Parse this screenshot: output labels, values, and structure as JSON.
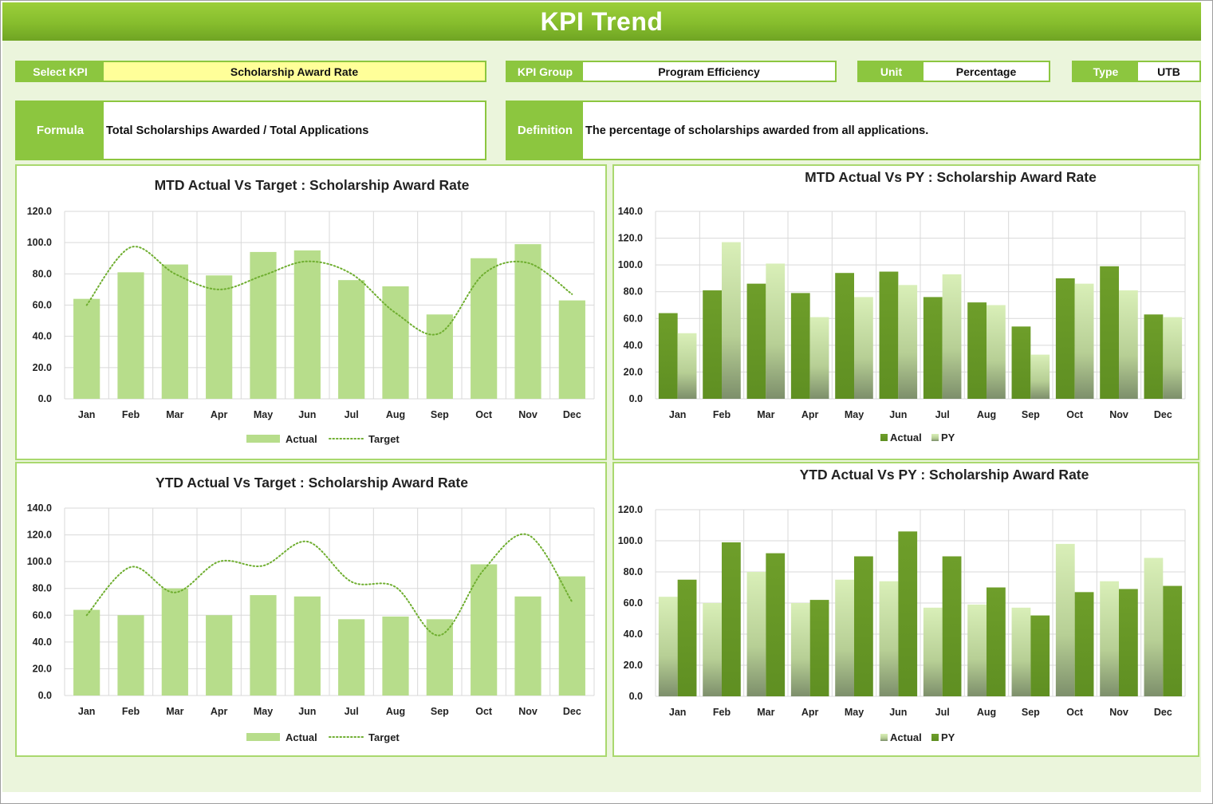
{
  "header": {
    "title": "KPI Trend"
  },
  "fields": {
    "select_kpi": {
      "label": "Select KPI",
      "value": "Scholarship Award Rate"
    },
    "kpi_group": {
      "label": "KPI Group",
      "value": "Program Efficiency"
    },
    "unit": {
      "label": "Unit",
      "value": "Percentage"
    },
    "type": {
      "label": "Type",
      "value": "UTB"
    },
    "formula": {
      "label": "Formula",
      "value": "Total Scholarships Awarded / Total Applications"
    },
    "definition": {
      "label": "Definition",
      "value": "The percentage of scholarships awarded from all applications."
    }
  },
  "colors": {
    "header_green": "#86bd2d",
    "label_green": "#8cc63f",
    "background": "#ebf5dc",
    "select_highlight": "#ffff99",
    "actual_light": "#b7dd8b",
    "dark_green": "#6e9e2a",
    "light_green": "#d6edb5",
    "target_line": "#6fae30"
  },
  "chart_data": [
    {
      "id": "mtd_target",
      "type": "bar",
      "title": "MTD Actual Vs Target : Scholarship Award Rate",
      "categories": [
        "Jan",
        "Feb",
        "Mar",
        "Apr",
        "May",
        "Jun",
        "Jul",
        "Aug",
        "Sep",
        "Oct",
        "Nov",
        "Dec"
      ],
      "ylim": [
        0,
        120
      ],
      "yticks": [
        "0.0",
        "20.0",
        "40.0",
        "60.0",
        "80.0",
        "100.0",
        "120.0"
      ],
      "grid": true,
      "legend_position": "bottom",
      "series": [
        {
          "name": "Actual",
          "kind": "bar",
          "values": [
            64,
            81,
            86,
            79,
            94,
            95,
            76,
            72,
            54,
            90,
            99,
            63
          ]
        },
        {
          "name": "Target",
          "kind": "line-dotted",
          "values": [
            60,
            97,
            80,
            70,
            79,
            88,
            80,
            55,
            42,
            80,
            87,
            67
          ]
        }
      ]
    },
    {
      "id": "mtd_py",
      "type": "bar",
      "title": "MTD Actual Vs PY : Scholarship Award Rate",
      "categories": [
        "Jan",
        "Feb",
        "Mar",
        "Apr",
        "May",
        "Jun",
        "Jul",
        "Aug",
        "Sep",
        "Oct",
        "Nov",
        "Dec"
      ],
      "ylim": [
        0,
        140
      ],
      "yticks": [
        "0.0",
        "20.0",
        "40.0",
        "60.0",
        "80.0",
        "100.0",
        "120.0",
        "140.0"
      ],
      "grid": true,
      "legend_position": "bottom",
      "series": [
        {
          "name": "Actual",
          "kind": "bar",
          "values": [
            64,
            81,
            86,
            79,
            94,
            95,
            76,
            72,
            54,
            90,
            99,
            63
          ]
        },
        {
          "name": "PY",
          "kind": "bar",
          "values": [
            49,
            117,
            101,
            61,
            76,
            85,
            93,
            70,
            33,
            86,
            81,
            61
          ]
        }
      ]
    },
    {
      "id": "ytd_target",
      "type": "bar",
      "title": "YTD Actual Vs Target : Scholarship Award Rate",
      "categories": [
        "Jan",
        "Feb",
        "Mar",
        "Apr",
        "May",
        "Jun",
        "Jul",
        "Aug",
        "Sep",
        "Oct",
        "Nov",
        "Dec"
      ],
      "ylim": [
        0,
        140
      ],
      "yticks": [
        "0.0",
        "20.0",
        "40.0",
        "60.0",
        "80.0",
        "100.0",
        "120.0",
        "140.0"
      ],
      "grid": true,
      "legend_position": "bottom",
      "series": [
        {
          "name": "Actual",
          "kind": "bar",
          "values": [
            64,
            60,
            80,
            60,
            75,
            74,
            57,
            59,
            57,
            98,
            74,
            89
          ]
        },
        {
          "name": "Target",
          "kind": "line-dotted",
          "values": [
            60,
            96,
            77,
            100,
            97,
            115,
            85,
            81,
            45,
            94,
            120,
            70
          ]
        }
      ]
    },
    {
      "id": "ytd_py",
      "type": "bar",
      "title": "YTD Actual Vs PY : Scholarship Award Rate",
      "categories": [
        "Jan",
        "Feb",
        "Mar",
        "Apr",
        "May",
        "Jun",
        "Jul",
        "Aug",
        "Sep",
        "Oct",
        "Nov",
        "Dec"
      ],
      "ylim": [
        0,
        120
      ],
      "yticks": [
        "0.0",
        "20.0",
        "40.0",
        "60.0",
        "80.0",
        "100.0",
        "120.0"
      ],
      "grid": true,
      "legend_position": "bottom",
      "series": [
        {
          "name": "Actual",
          "kind": "bar",
          "values": [
            64,
            60,
            80,
            60,
            75,
            74,
            57,
            59,
            57,
            98,
            74,
            89
          ]
        },
        {
          "name": "PY",
          "kind": "bar",
          "values": [
            75,
            99,
            92,
            62,
            90,
            106,
            90,
            70,
            52,
            67,
            69,
            71
          ]
        }
      ]
    }
  ]
}
